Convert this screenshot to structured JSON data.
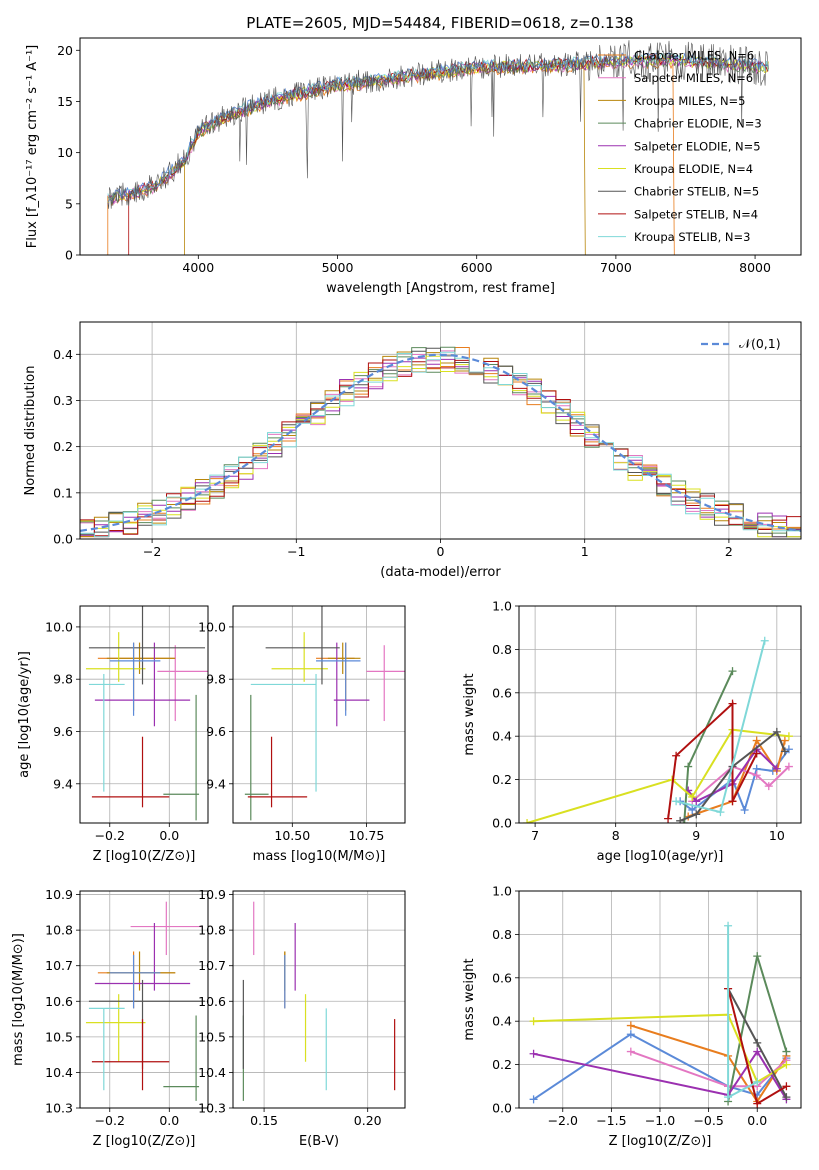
{
  "title": "PLATE=2605, MJD=54484, FIBERID=0618, z=0.138",
  "colors": [
    "#e87d1e",
    "#e377c2",
    "#b8860b",
    "#5b8a5b",
    "#9b30b0",
    "#d9e021",
    "#555555",
    "#b01010",
    "#7fd8d8",
    "#5b8ad8"
  ],
  "chart_data": [
    {
      "id": "spectrum",
      "type": "line",
      "xlabel": "wavelength [Angstrom, rest frame]",
      "ylabel": "Flux [f_λ10⁻¹⁷ erg cm⁻² s⁻¹ A⁻¹]",
      "xlim": [
        3150,
        8330
      ],
      "ylim": [
        0,
        21.2
      ],
      "xticks": [
        4000,
        5000,
        6000,
        7000,
        8000
      ],
      "yticks": [
        0,
        5,
        10,
        15,
        20
      ],
      "continuum": {
        "x": [
          3350,
          3500,
          3700,
          3900,
          4000,
          4200,
          4500,
          4800,
          5000,
          5300,
          5600,
          6000,
          6300,
          6600,
          7000,
          7400,
          7800,
          8100
        ],
        "y": [
          5.5,
          5.9,
          6.8,
          9.2,
          12.0,
          13.5,
          15.0,
          16.0,
          16.6,
          17.0,
          17.6,
          18.3,
          18.4,
          18.5,
          18.9,
          19.0,
          18.6,
          18.3
        ]
      },
      "legend": [
        {
          "name": "Chabrier MILES, N_SSP=6",
          "color": "#e87d1e"
        },
        {
          "name": "Salpeter MILES, N_SSP=6",
          "color": "#e377c2"
        },
        {
          "name": "Kroupa MILES, N_SSP=5",
          "color": "#b8860b"
        },
        {
          "name": "Chabrier ELODIE, N_SSP=3",
          "color": "#5b8a5b"
        },
        {
          "name": "Salpeter ELODIE, N_SSP=5",
          "color": "#9b30b0"
        },
        {
          "name": "Kroupa ELODIE, N_SSP=4",
          "color": "#d9e021"
        },
        {
          "name": "Chabrier STELIB, N_SSP=5",
          "color": "#555555"
        },
        {
          "name": "Salpeter STELIB, N_SSP=4",
          "color": "#b01010"
        },
        {
          "name": "Kroupa STELIB, N_SSP=3",
          "color": "#7fd8d8"
        }
      ],
      "legend_position": "top-right"
    },
    {
      "id": "residuals",
      "type": "histogram",
      "xlabel": "(data-model)/error",
      "ylabel": "Normed distribution",
      "xlim": [
        -2.5,
        2.5
      ],
      "ylim": [
        0,
        0.47
      ],
      "xticks": [
        -2,
        -1,
        0,
        1,
        2
      ],
      "yticks": [
        0.0,
        0.1,
        0.2,
        0.3,
        0.4
      ],
      "bins": [
        -2.5,
        -2.4,
        -2.3,
        -2.2,
        -2.1,
        -2.0,
        -1.9,
        -1.8,
        -1.7,
        -1.6,
        -1.5,
        -1.4,
        -1.3,
        -1.2,
        -1.1,
        -1.0,
        -0.9,
        -0.8,
        -0.7,
        -0.6,
        -0.5,
        -0.4,
        -0.3,
        -0.2,
        -0.1,
        0.0,
        0.1,
        0.2,
        0.3,
        0.4,
        0.5,
        0.6,
        0.7,
        0.8,
        0.9,
        1.0,
        1.1,
        1.2,
        1.3,
        1.4,
        1.5,
        1.6,
        1.7,
        1.8,
        1.9,
        2.0,
        2.1,
        2.2,
        2.3,
        2.4,
        2.5
      ],
      "reference_curve": {
        "label": "𝒩(0,1)",
        "mean": 0,
        "sigma": 1
      },
      "legend_position": "top-right"
    },
    {
      "id": "age-vs-Z",
      "type": "errorbar",
      "xlabel": "Z [log10(Z/Z⊙)]",
      "ylabel": "age  [log10(age/yr)]",
      "xlim": [
        -0.3,
        0.13
      ],
      "ylim": [
        9.25,
        10.08
      ],
      "xticks": [
        -0.2,
        0.0
      ],
      "yticks": [
        9.4,
        9.6,
        9.8,
        10.0
      ],
      "points": [
        {
          "x": -0.12,
          "xerr": [
            0.12,
            0.14
          ],
          "y": 9.88,
          "yerr": [
            0.2,
            0.06
          ],
          "color": "#e87d1e"
        },
        {
          "x": 0.02,
          "xerr": [
            0.06,
            0.11
          ],
          "y": 9.83,
          "yerr": [
            0.19,
            0.1
          ],
          "color": "#e377c2"
        },
        {
          "x": -0.1,
          "xerr": [
            0.11,
            0.12
          ],
          "y": 9.88,
          "yerr": [
            0.06,
            0.06
          ],
          "color": "#b8860b"
        },
        {
          "x": 0.09,
          "xerr": [
            0.11,
            0.01
          ],
          "y": 9.36,
          "yerr": [
            0.1,
            0.38
          ],
          "color": "#5b8a5b"
        },
        {
          "x": -0.05,
          "xerr": [
            0.2,
            0.12
          ],
          "y": 9.72,
          "yerr": [
            0.1,
            0.22
          ],
          "color": "#9b30b0"
        },
        {
          "x": -0.17,
          "xerr": [
            0.11,
            0.09
          ],
          "y": 9.84,
          "yerr": [
            0.05,
            0.14
          ],
          "color": "#d9e021"
        },
        {
          "x": -0.09,
          "xerr": [
            0.18,
            0.21
          ],
          "y": 9.92,
          "yerr": [
            0.14,
            0.17
          ],
          "color": "#555555"
        },
        {
          "x": -0.09,
          "xerr": [
            0.17,
            0.09
          ],
          "y": 9.35,
          "yerr": [
            0.04,
            0.23
          ],
          "color": "#b01010"
        },
        {
          "x": -0.22,
          "xerr": [
            0.05,
            0.07
          ],
          "y": 9.78,
          "yerr": [
            0.41,
            0.04
          ],
          "color": "#7fd8d8"
        },
        {
          "x": -0.12,
          "xerr": [
            0.08,
            0.09
          ],
          "y": 9.87,
          "yerr": [
            0.21,
            0.07
          ],
          "color": "#5b8ad8"
        }
      ]
    },
    {
      "id": "age-vs-mass",
      "type": "errorbar",
      "xlabel": "mass [log10(M/M⊙)]",
      "xlim": [
        10.3,
        10.88
      ],
      "ylim": [
        9.25,
        10.08
      ],
      "xticks": [
        10.5,
        10.75
      ],
      "yticks": [
        9.4,
        9.6,
        9.8,
        10.0
      ],
      "points": [
        {
          "x": 10.68,
          "xerr": [
            0.1,
            0.03
          ],
          "y": 9.88,
          "yerr": [
            0.2,
            0.06
          ],
          "color": "#e87d1e"
        },
        {
          "x": 10.81,
          "xerr": [
            0.06,
            0.07
          ],
          "y": 9.83,
          "yerr": [
            0.19,
            0.1
          ],
          "color": "#e377c2"
        },
        {
          "x": 10.67,
          "xerr": [
            0.05,
            0.06
          ],
          "y": 9.88,
          "yerr": [
            0.06,
            0.06
          ],
          "color": "#b8860b"
        },
        {
          "x": 10.36,
          "xerr": [
            0.02,
            0.06
          ],
          "y": 9.36,
          "yerr": [
            0.1,
            0.38
          ],
          "color": "#5b8a5b"
        },
        {
          "x": 10.65,
          "xerr": [
            0.01,
            0.11
          ],
          "y": 9.72,
          "yerr": [
            0.1,
            0.22
          ],
          "color": "#9b30b0"
        },
        {
          "x": 10.54,
          "xerr": [
            0.11,
            0.08
          ],
          "y": 9.84,
          "yerr": [
            0.05,
            0.14
          ],
          "color": "#d9e021"
        },
        {
          "x": 10.6,
          "xerr": [
            0.19,
            0.06
          ],
          "y": 9.92,
          "yerr": [
            0.14,
            0.17
          ],
          "color": "#555555"
        },
        {
          "x": 10.43,
          "xerr": [
            0.08,
            0.12
          ],
          "y": 9.35,
          "yerr": [
            0.04,
            0.23
          ],
          "color": "#b01010"
        },
        {
          "x": 10.58,
          "xerr": [
            0.22,
            0.0
          ],
          "y": 9.78,
          "yerr": [
            0.41,
            0.04
          ],
          "color": "#7fd8d8"
        },
        {
          "x": 10.68,
          "xerr": [
            0.1,
            0.05
          ],
          "y": 9.87,
          "yerr": [
            0.21,
            0.07
          ],
          "color": "#5b8ad8"
        }
      ]
    },
    {
      "id": "mass-weight-vs-age",
      "type": "line",
      "xlabel": "age  [log10(age/yr)]",
      "ylabel": "mass weight",
      "xlim": [
        6.8,
        10.3
      ],
      "ylim": [
        0,
        1.0
      ],
      "xticks": [
        7,
        8,
        9,
        10
      ],
      "yticks": [
        0.0,
        0.2,
        0.4,
        0.6,
        0.8,
        1.0
      ],
      "series": [
        {
          "color": "#5b8ad8",
          "x": [
            8.8,
            8.95,
            9.45,
            9.6,
            9.75,
            9.95,
            10.15
          ],
          "y": [
            0.1,
            0.06,
            0.2,
            0.06,
            0.25,
            0.24,
            0.34
          ]
        },
        {
          "color": "#e87d1e",
          "x": [
            8.9,
            9.45,
            9.75,
            10.0,
            10.1
          ],
          "y": [
            0.03,
            0.1,
            0.38,
            0.24,
            0.38
          ]
        },
        {
          "color": "#e377c2",
          "x": [
            8.95,
            9.45,
            9.75,
            9.9,
            10.15
          ],
          "y": [
            0.1,
            0.26,
            0.22,
            0.17,
            0.26
          ]
        },
        {
          "color": "#5b8a5b",
          "x": [
            8.85,
            8.9,
            9.45
          ],
          "y": [
            0.0,
            0.26,
            0.7
          ]
        },
        {
          "color": "#9b30b0",
          "x": [
            8.9,
            9.0,
            9.45,
            9.75,
            10.0
          ],
          "y": [
            0.15,
            0.1,
            0.18,
            0.34,
            0.25
          ]
        },
        {
          "color": "#d9e021",
          "x": [
            6.9,
            8.7,
            8.95,
            9.45,
            10.15
          ],
          "y": [
            0.0,
            0.2,
            0.12,
            0.43,
            0.4
          ]
        },
        {
          "color": "#555555",
          "x": [
            8.8,
            9.0,
            9.45,
            10.0,
            10.1
          ],
          "y": [
            0.01,
            0.04,
            0.26,
            0.42,
            0.33
          ]
        },
        {
          "color": "#b01010",
          "x": [
            8.65,
            8.75,
            9.45,
            9.45,
            9.75
          ],
          "y": [
            0.02,
            0.31,
            0.55,
            0.1,
            0.32
          ]
        },
        {
          "color": "#7fd8d8",
          "x": [
            8.75,
            9.3,
            9.85
          ],
          "y": [
            0.1,
            0.05,
            0.84
          ]
        }
      ]
    },
    {
      "id": "mass-vs-Z",
      "type": "errorbar",
      "xlabel": "Z [log10(Z/Z⊙)]",
      "ylabel": "mass [log10(M/M⊙)]",
      "xlim": [
        -0.3,
        0.13
      ],
      "ylim": [
        10.3,
        10.91
      ],
      "xticks": [
        -0.2,
        0.0
      ],
      "yticks": [
        10.3,
        10.4,
        10.5,
        10.6,
        10.7,
        10.8,
        10.9
      ],
      "points": [
        {
          "x": -0.12,
          "xerr": [
            0.12,
            0.14
          ],
          "y": 10.68,
          "yerr": [
            0.1,
            0.06
          ],
          "color": "#e87d1e"
        },
        {
          "x": -0.01,
          "xerr": [
            0.12,
            0.12
          ],
          "y": 10.81,
          "yerr": [
            0.08,
            0.07
          ],
          "color": "#e377c2"
        },
        {
          "x": -0.1,
          "xerr": [
            0.11,
            0.12
          ],
          "y": 10.68,
          "yerr": [
            0.05,
            0.06
          ],
          "color": "#b8860b"
        },
        {
          "x": 0.09,
          "xerr": [
            0.11,
            0.01
          ],
          "y": 10.36,
          "yerr": [
            0.04,
            0.2
          ],
          "color": "#5b8a5b"
        },
        {
          "x": -0.05,
          "xerr": [
            0.2,
            0.12
          ],
          "y": 10.65,
          "yerr": [
            0.02,
            0.17
          ],
          "color": "#9b30b0"
        },
        {
          "x": -0.17,
          "xerr": [
            0.11,
            0.09
          ],
          "y": 10.54,
          "yerr": [
            0.11,
            0.08
          ],
          "color": "#d9e021"
        },
        {
          "x": -0.09,
          "xerr": [
            0.18,
            0.21
          ],
          "y": 10.6,
          "yerr": [
            0.19,
            0.06
          ],
          "color": "#555555"
        },
        {
          "x": -0.09,
          "xerr": [
            0.17,
            0.09
          ],
          "y": 10.43,
          "yerr": [
            0.08,
            0.12
          ],
          "color": "#b01010"
        },
        {
          "x": -0.22,
          "xerr": [
            0.05,
            0.07
          ],
          "y": 10.58,
          "yerr": [
            0.23,
            0.0
          ],
          "color": "#7fd8d8"
        },
        {
          "x": -0.12,
          "xerr": [
            0.08,
            0.09
          ],
          "y": 10.68,
          "yerr": [
            0.1,
            0.05
          ],
          "color": "#5b8ad8"
        }
      ]
    },
    {
      "id": "mass-vs-EBV",
      "type": "errorbar",
      "xlabel": "E(B-V)",
      "xlim": [
        0.135,
        0.218
      ],
      "ylim": [
        10.3,
        10.91
      ],
      "xticks": [
        0.15,
        0.2
      ],
      "yticks": [
        10.3,
        10.4,
        10.5,
        10.6,
        10.7,
        10.8,
        10.9
      ],
      "points": [
        {
          "x": 0.16,
          "yerr": [
            0.1,
            0.06
          ],
          "y": 10.68,
          "color": "#e87d1e"
        },
        {
          "x": 0.145,
          "yerr": [
            0.08,
            0.07
          ],
          "y": 10.81,
          "color": "#e377c2"
        },
        {
          "x": 0.16,
          "yerr": [
            0.05,
            0.06
          ],
          "y": 10.68,
          "color": "#b8860b"
        },
        {
          "x": 0.14,
          "yerr": [
            0.04,
            0.2
          ],
          "y": 10.36,
          "color": "#5b8a5b"
        },
        {
          "x": 0.165,
          "yerr": [
            0.02,
            0.17
          ],
          "y": 10.65,
          "color": "#9b30b0"
        },
        {
          "x": 0.17,
          "yerr": [
            0.11,
            0.08
          ],
          "y": 10.54,
          "color": "#d9e021"
        },
        {
          "x": 0.14,
          "yerr": [
            0.19,
            0.06
          ],
          "y": 10.6,
          "color": "#555555"
        },
        {
          "x": 0.213,
          "yerr": [
            0.08,
            0.12
          ],
          "y": 10.43,
          "color": "#b01010"
        },
        {
          "x": 0.18,
          "yerr": [
            0.23,
            0.0
          ],
          "y": 10.58,
          "color": "#7fd8d8"
        },
        {
          "x": 0.16,
          "yerr": [
            0.1,
            0.05
          ],
          "y": 10.68,
          "color": "#5b8ad8"
        }
      ]
    },
    {
      "id": "mass-weight-vs-Z",
      "type": "line",
      "xlabel": "Z [log10(Z/Z⊙)]",
      "ylabel": "mass weight",
      "xlim": [
        -2.45,
        0.45
      ],
      "ylim": [
        0,
        1.0
      ],
      "xticks": [
        -2.0,
        -1.5,
        -1.0,
        -0.5,
        0.0
      ],
      "yticks": [
        0.0,
        0.2,
        0.4,
        0.6,
        0.8,
        1.0
      ],
      "series": [
        {
          "color": "#5b8ad8",
          "x": [
            -2.3,
            -1.3,
            -0.3,
            0.0,
            0.3
          ],
          "y": [
            0.04,
            0.34,
            0.1,
            0.06,
            0.23
          ]
        },
        {
          "color": "#e87d1e",
          "x": [
            -1.3,
            -0.3,
            0.0,
            0.3
          ],
          "y": [
            0.38,
            0.24,
            0.03,
            0.24
          ]
        },
        {
          "color": "#e377c2",
          "x": [
            -1.3,
            -0.3,
            0.0,
            0.3
          ],
          "y": [
            0.26,
            0.1,
            0.1,
            0.22
          ]
        },
        {
          "color": "#5b8a5b",
          "x": [
            -0.3,
            0.0,
            0.3
          ],
          "y": [
            0.03,
            0.7,
            0.26
          ]
        },
        {
          "color": "#9b30b0",
          "x": [
            -2.3,
            -0.3,
            0.0,
            0.3
          ],
          "y": [
            0.25,
            0.06,
            0.26,
            0.04
          ]
        },
        {
          "color": "#d9e021",
          "x": [
            -2.3,
            -0.3,
            0.0,
            0.3
          ],
          "y": [
            0.4,
            0.43,
            0.12,
            0.2
          ]
        },
        {
          "color": "#555555",
          "x": [
            -0.3,
            0.0,
            0.3
          ],
          "y": [
            0.55,
            0.3,
            0.05
          ]
        },
        {
          "color": "#b01010",
          "x": [
            -0.3,
            0.0,
            0.3
          ],
          "y": [
            0.55,
            0.02,
            0.1
          ]
        },
        {
          "color": "#7fd8d8",
          "x": [
            -0.3,
            -0.3,
            0.0
          ],
          "y": [
            0.84,
            0.05,
            0.12
          ]
        }
      ]
    }
  ]
}
